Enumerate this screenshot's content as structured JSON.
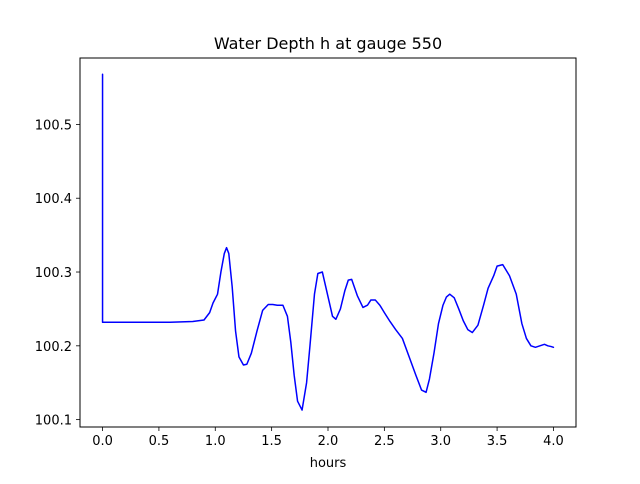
{
  "chart_data": {
    "type": "line",
    "title": "Water Depth h at gauge 550",
    "xlabel": "hours",
    "ylabel": "",
    "xlim": [
      -0.2,
      4.2
    ],
    "ylim": [
      100.09,
      100.59
    ],
    "xticks": [
      0.0,
      0.5,
      1.0,
      1.5,
      2.0,
      2.5,
      3.0,
      3.5,
      4.0
    ],
    "xtick_labels": [
      "0.0",
      "0.5",
      "1.0",
      "1.5",
      "2.0",
      "2.5",
      "3.0",
      "3.5",
      "4.0"
    ],
    "yticks": [
      100.1,
      100.2,
      100.3,
      100.4,
      100.5
    ],
    "ytick_labels": [
      "100.1",
      "100.2",
      "100.3",
      "100.4",
      "100.5"
    ],
    "grid": false,
    "series": [
      {
        "color": "#0000ff",
        "x": [
          0.0,
          0.0,
          0.0,
          0.2,
          0.4,
          0.6,
          0.8,
          0.9,
          0.95,
          0.98,
          1.02,
          1.05,
          1.08,
          1.1,
          1.12,
          1.15,
          1.18,
          1.21,
          1.25,
          1.28,
          1.32,
          1.37,
          1.42,
          1.47,
          1.51,
          1.55,
          1.6,
          1.64,
          1.67,
          1.7,
          1.73,
          1.77,
          1.81,
          1.84,
          1.88,
          1.91,
          1.95,
          1.98,
          2.01,
          2.04,
          2.07,
          2.11,
          2.15,
          2.18,
          2.21,
          2.26,
          2.31,
          2.35,
          2.38,
          2.42,
          2.46,
          2.5,
          2.55,
          2.6,
          2.66,
          2.72,
          2.78,
          2.83,
          2.87,
          2.9,
          2.94,
          2.98,
          3.02,
          3.05,
          3.08,
          3.12,
          3.16,
          3.2,
          3.24,
          3.28,
          3.33,
          3.38,
          3.42,
          3.47,
          3.5,
          3.55,
          3.61,
          3.67,
          3.72,
          3.76,
          3.8,
          3.84,
          3.88,
          3.92,
          3.95,
          3.98,
          4.0
        ],
        "y": [
          100.568,
          100.25,
          100.232,
          100.232,
          100.232,
          100.232,
          100.233,
          100.235,
          100.245,
          100.258,
          100.27,
          100.3,
          100.325,
          100.333,
          100.325,
          100.28,
          100.22,
          100.185,
          100.174,
          100.175,
          100.19,
          100.22,
          100.248,
          100.256,
          100.256,
          100.255,
          100.255,
          100.24,
          100.205,
          100.16,
          100.125,
          100.113,
          100.15,
          100.2,
          100.27,
          100.298,
          100.3,
          100.28,
          100.26,
          100.24,
          100.236,
          100.25,
          100.275,
          100.289,
          100.29,
          100.268,
          100.252,
          100.255,
          100.262,
          100.262,
          100.255,
          100.245,
          100.233,
          100.222,
          100.21,
          100.185,
          100.16,
          100.14,
          100.137,
          100.155,
          100.19,
          100.23,
          100.255,
          100.266,
          100.27,
          100.265,
          100.25,
          100.234,
          100.222,
          100.218,
          100.228,
          100.255,
          100.278,
          100.295,
          100.308,
          100.31,
          100.295,
          100.27,
          100.23,
          100.21,
          100.2,
          100.198,
          100.2,
          100.202,
          100.2,
          100.199,
          100.198
        ]
      }
    ]
  }
}
